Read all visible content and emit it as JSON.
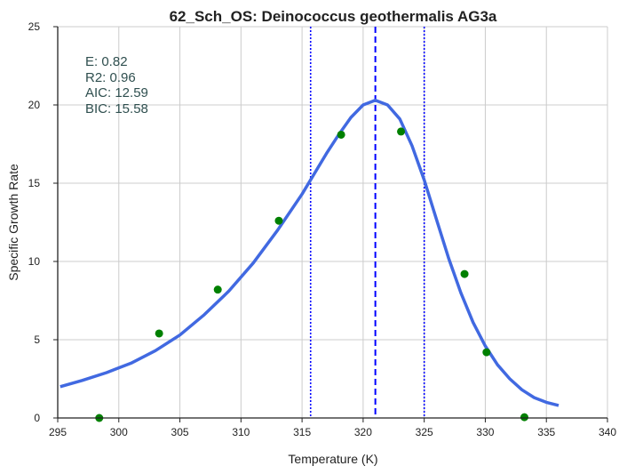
{
  "chart_data": {
    "type": "line",
    "title": "62_Sch_OS: Deinococcus geothermalis AG3a",
    "xlabel": "Temperature (K)",
    "ylabel": "Specific Growth Rate",
    "xlim": [
      295,
      340
    ],
    "ylim": [
      0,
      25
    ],
    "xticks": [
      295,
      300,
      305,
      310,
      315,
      320,
      325,
      330,
      335,
      340
    ],
    "yticks": [
      0,
      5,
      10,
      15,
      20,
      25
    ],
    "grid": true,
    "annotations": [
      "E:  0.82",
      "R2:  0.96",
      "AIC: 12.59",
      "BIC: 15.58"
    ],
    "annotation_color": "#2f4f4f",
    "series": [
      {
        "kind": "scatter",
        "color": "#008000",
        "x": [
          298.4,
          303.3,
          308.1,
          313.1,
          318.2,
          323.1,
          328.3,
          330.1,
          333.2
        ],
        "y": [
          0.0,
          5.4,
          8.2,
          12.6,
          18.1,
          18.3,
          9.2,
          4.2,
          0.05
        ]
      },
      {
        "kind": "line",
        "color": "#4169e1",
        "x": [
          295.2,
          297,
          299,
          301,
          303,
          305,
          307,
          309,
          311,
          313,
          315,
          316,
          317,
          318,
          319,
          320,
          321,
          322,
          323,
          324,
          325,
          326,
          327,
          328,
          329,
          330,
          331,
          332,
          333,
          334,
          335,
          336
        ],
        "y": [
          2.0,
          2.4,
          2.9,
          3.5,
          4.3,
          5.3,
          6.6,
          8.1,
          9.9,
          12.0,
          14.3,
          15.6,
          16.9,
          18.1,
          19.2,
          20.0,
          20.3,
          20.0,
          19.1,
          17.4,
          15.2,
          12.7,
          10.2,
          8.0,
          6.1,
          4.6,
          3.4,
          2.5,
          1.8,
          1.3,
          1.0,
          0.8
        ]
      }
    ],
    "vlines": [
      {
        "x": 321.0,
        "style": "dashed",
        "color": "#0000ff"
      },
      {
        "x": 315.7,
        "style": "dotted",
        "color": "#0000ff"
      },
      {
        "x": 325.0,
        "style": "dotted",
        "color": "#0000ff"
      }
    ]
  }
}
